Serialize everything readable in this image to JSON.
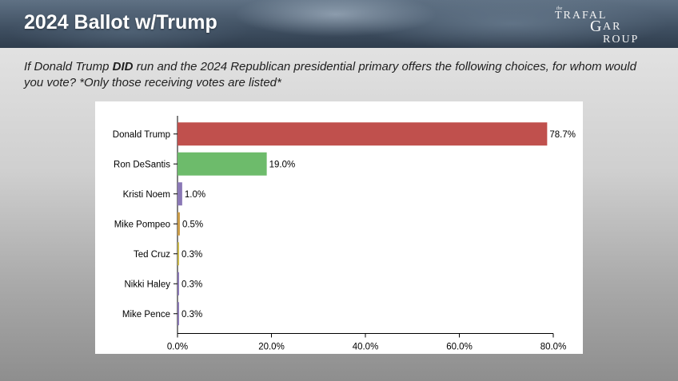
{
  "header": {
    "title": "2024 Ballot w/Trump",
    "logo": {
      "the": "the",
      "top": "TRAFAL",
      "mark": "G",
      "bottom": "AR ROUP"
    }
  },
  "question": {
    "before": "If Donald Trump ",
    "emphasis": "DID",
    "after": " run and the 2024 Republican presidential primary offers the following choices, for whom would you vote? *Only those receiving votes are listed*"
  },
  "chart_data": {
    "type": "bar",
    "orientation": "horizontal",
    "categories": [
      "Donald Trump",
      "Ron DeSantis",
      "Kristi Noem",
      "Mike Pompeo",
      "Ted Cruz",
      "Nikki Haley",
      "Mike Pence"
    ],
    "values": [
      78.7,
      19.0,
      1.0,
      0.5,
      0.3,
      0.3,
      0.3
    ],
    "value_labels": [
      "78.7%",
      "19.0%",
      "1.0%",
      "0.5%",
      "0.3%",
      "0.3%",
      "0.3%"
    ],
    "colors": [
      "#c0504d",
      "#6dbb6b",
      "#8a78b6",
      "#c99a45",
      "#c9b84a",
      "#8a78b6",
      "#8a78b6"
    ],
    "xlim": [
      0,
      80
    ],
    "xticks": [
      0,
      20,
      40,
      60,
      80
    ],
    "xtick_labels": [
      "0.0%",
      "20.0%",
      "40.0%",
      "60.0%",
      "80.0%"
    ],
    "grid": false,
    "legend": "none"
  }
}
